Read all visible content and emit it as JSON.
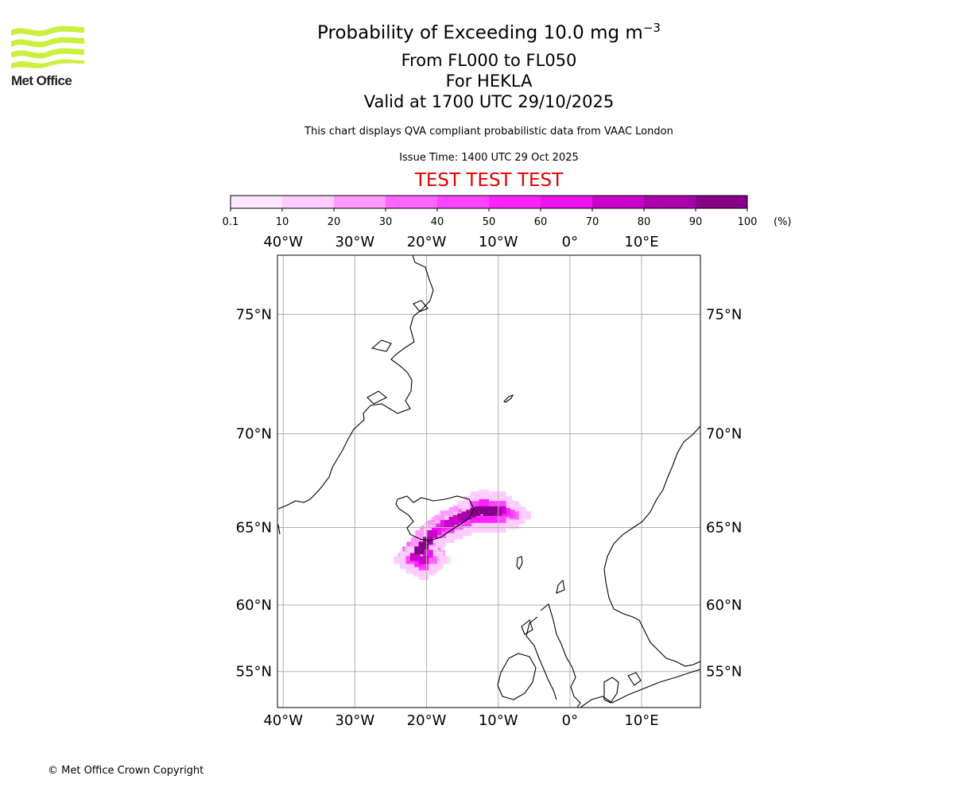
{
  "logo": {
    "name": "Met Office",
    "color": "#c8f03c"
  },
  "title": {
    "line1": "Probability of Exceeding 10.0 mg m",
    "line1_sup": "−3",
    "line2": "From FL000 to FL050",
    "line3": "For HEKLA",
    "line4": "Valid at 1700 UTC 29/10/2025"
  },
  "subtitle": "This chart displays QVA compliant probabilistic data from VAAC London",
  "issue_time": "Issue Time: 1400 UTC 29 Oct 2025",
  "test_banner": "TEST TEST TEST",
  "colorbar": {
    "ticks": [
      "0.1",
      "10",
      "20",
      "30",
      "40",
      "50",
      "60",
      "70",
      "80",
      "90",
      "100"
    ],
    "unit": "(%)",
    "colors": [
      "#ffe6ff",
      "#ffccff",
      "#ff99ff",
      "#ff66ff",
      "#ff44ff",
      "#ff22ff",
      "#ee11ee",
      "#cc00cc",
      "#aa00aa",
      "#880088",
      "#660066"
    ]
  },
  "map": {
    "lon_labels": [
      "40°W",
      "30°W",
      "20°W",
      "10°W",
      "0°",
      "10°E"
    ],
    "lon_values": [
      -40,
      -30,
      -20,
      -10,
      0,
      10
    ],
    "lat_labels": [
      "75°N",
      "70°N",
      "65°N",
      "60°N",
      "55°N"
    ],
    "lat_values": [
      75,
      70,
      65,
      60,
      55
    ],
    "extent": {
      "lon_min": -40.8,
      "lon_max": 18.2,
      "lat_min": 52,
      "lat_max": 77
    },
    "plume_cells_prob": [
      {
        "lon": -21.0,
        "lat": 63.6,
        "p": 95
      },
      {
        "lon": -20.4,
        "lat": 63.9,
        "p": 90
      },
      {
        "lon": -19.8,
        "lat": 64.2,
        "p": 85
      },
      {
        "lon": -21.6,
        "lat": 63.2,
        "p": 75
      },
      {
        "lon": -20.4,
        "lat": 63.0,
        "p": 70
      },
      {
        "lon": -19.8,
        "lat": 63.4,
        "p": 65
      },
      {
        "lon": -19.2,
        "lat": 64.6,
        "p": 70
      },
      {
        "lon": -18.6,
        "lat": 64.8,
        "p": 60
      },
      {
        "lon": -18.0,
        "lat": 65.0,
        "p": 55
      },
      {
        "lon": -17.4,
        "lat": 65.2,
        "p": 60
      },
      {
        "lon": -16.8,
        "lat": 65.2,
        "p": 70
      },
      {
        "lon": -16.2,
        "lat": 65.4,
        "p": 75
      },
      {
        "lon": -15.6,
        "lat": 65.5,
        "p": 70
      },
      {
        "lon": -15.0,
        "lat": 65.6,
        "p": 80
      },
      {
        "lon": -14.4,
        "lat": 65.7,
        "p": 80
      },
      {
        "lon": -13.8,
        "lat": 65.8,
        "p": 85
      },
      {
        "lon": -13.2,
        "lat": 65.9,
        "p": 90
      },
      {
        "lon": -12.6,
        "lat": 66.0,
        "p": 95
      },
      {
        "lon": -12.0,
        "lat": 66.0,
        "p": 95
      },
      {
        "lon": -11.4,
        "lat": 65.9,
        "p": 90
      },
      {
        "lon": -10.8,
        "lat": 66.0,
        "p": 90
      },
      {
        "lon": -10.2,
        "lat": 65.9,
        "p": 85
      },
      {
        "lon": -9.6,
        "lat": 66.0,
        "p": 75
      },
      {
        "lon": -9.0,
        "lat": 65.9,
        "p": 55
      },
      {
        "lon": -8.4,
        "lat": 65.8,
        "p": 45
      },
      {
        "lon": -7.8,
        "lat": 65.7,
        "p": 30
      },
      {
        "lon": -21.0,
        "lat": 62.8,
        "p": 55
      },
      {
        "lon": -20.4,
        "lat": 62.6,
        "p": 40
      },
      {
        "lon": -19.2,
        "lat": 63.0,
        "p": 35
      },
      {
        "lon": -22.2,
        "lat": 63.0,
        "p": 40
      },
      {
        "lon": -18.0,
        "lat": 64.6,
        "p": 35
      },
      {
        "lon": -16.8,
        "lat": 64.9,
        "p": 40
      },
      {
        "lon": -15.6,
        "lat": 65.1,
        "p": 35
      },
      {
        "lon": -14.4,
        "lat": 65.3,
        "p": 40
      },
      {
        "lon": -13.2,
        "lat": 65.5,
        "p": 50
      },
      {
        "lon": -12.0,
        "lat": 65.5,
        "p": 55
      },
      {
        "lon": -10.8,
        "lat": 65.5,
        "p": 55
      },
      {
        "lon": -9.6,
        "lat": 65.5,
        "p": 45
      },
      {
        "lon": -13.2,
        "lat": 66.3,
        "p": 45
      },
      {
        "lon": -12.0,
        "lat": 66.4,
        "p": 50
      },
      {
        "lon": -10.8,
        "lat": 66.3,
        "p": 45
      },
      {
        "lon": -9.6,
        "lat": 66.3,
        "p": 40
      }
    ]
  },
  "copyright": "© Met Office Crown Copyright"
}
